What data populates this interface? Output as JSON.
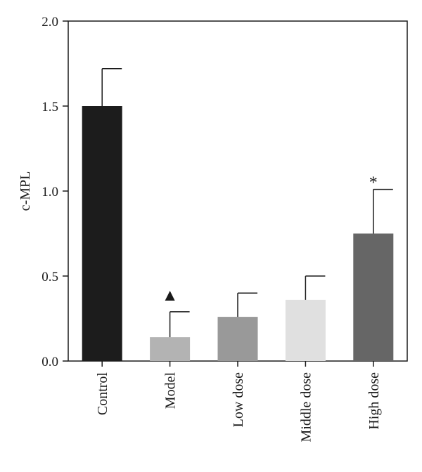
{
  "chart_data": {
    "type": "bar",
    "title": "",
    "xlabel": "",
    "ylabel": "c-MPL",
    "ylim": [
      0,
      2.0
    ],
    "yticks": [
      0.0,
      0.5,
      1.0,
      1.5,
      2.0
    ],
    "ytick_labels": [
      "0.0",
      "0.5",
      "1.0",
      "1.5",
      "2.0"
    ],
    "grid": false,
    "categories": [
      "Control",
      "Model",
      "Low dose",
      "Middle dose",
      "High dose"
    ],
    "values": [
      1.5,
      0.14,
      0.26,
      0.36,
      0.75
    ],
    "error_upper": [
      0.22,
      0.15,
      0.14,
      0.14,
      0.26
    ],
    "bar_colors": [
      "#1c1c1c",
      "#b3b3b3",
      "#999999",
      "#e0e0e0",
      "#666666"
    ],
    "annotations": [
      {
        "category": "Model",
        "symbol": "▲"
      },
      {
        "category": "High dose",
        "symbol": "*"
      }
    ]
  }
}
